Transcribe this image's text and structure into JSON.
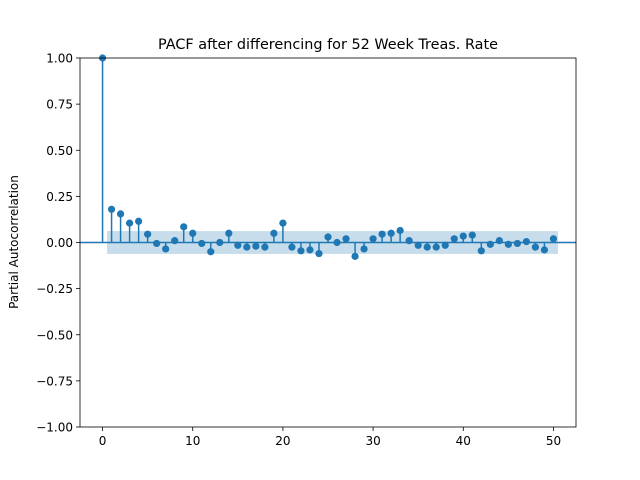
{
  "chart_data": {
    "type": "stem",
    "title": "PACF after differencing for 52 Week Treas. Rate",
    "xlabel": "",
    "ylabel": "Partial Autocorrelation",
    "xlim": [
      -2.5,
      52.5
    ],
    "ylim": [
      -1.0,
      1.0
    ],
    "xticks": [
      0,
      10,
      20,
      30,
      40,
      50
    ],
    "xtick_labels": [
      "0",
      "10",
      "20",
      "30",
      "40",
      "50"
    ],
    "yticks": [
      -1.0,
      -0.75,
      -0.5,
      -0.25,
      0.0,
      0.25,
      0.5,
      0.75,
      1.0
    ],
    "ytick_labels": [
      "−1.00",
      "−0.75",
      "−0.50",
      "−0.25",
      "0.00",
      "0.25",
      "0.50",
      "0.75",
      "1.00"
    ],
    "grid": false,
    "lags": [
      0,
      1,
      2,
      3,
      4,
      5,
      6,
      7,
      8,
      9,
      10,
      11,
      12,
      13,
      14,
      15,
      16,
      17,
      18,
      19,
      20,
      21,
      22,
      23,
      24,
      25,
      26,
      27,
      28,
      29,
      30,
      31,
      32,
      33,
      34,
      35,
      36,
      37,
      38,
      39,
      40,
      41,
      42,
      43,
      44,
      45,
      46,
      47,
      48,
      49,
      50
    ],
    "values": [
      1.0,
      0.18,
      0.155,
      0.105,
      0.115,
      0.045,
      -0.005,
      -0.035,
      0.01,
      0.085,
      0.05,
      -0.005,
      -0.05,
      0.0,
      0.05,
      -0.015,
      -0.025,
      -0.02,
      -0.025,
      0.05,
      0.105,
      -0.025,
      -0.045,
      -0.04,
      -0.06,
      0.03,
      0.0,
      0.02,
      -0.075,
      -0.035,
      0.02,
      0.045,
      0.05,
      0.065,
      0.01,
      -0.015,
      -0.025,
      -0.025,
      -0.015,
      0.02,
      0.035,
      0.04,
      -0.045,
      -0.01,
      0.01,
      -0.01,
      -0.005,
      0.005,
      -0.025,
      -0.04,
      0.02
    ],
    "confidence_band": {
      "lags_start": 0.5,
      "lags_end": 50.5,
      "lower": -0.062,
      "upper": 0.062
    },
    "colors": {
      "stem": "#1f77b4",
      "band": "#1f77b4",
      "zero_line": "#1f77b4"
    }
  }
}
